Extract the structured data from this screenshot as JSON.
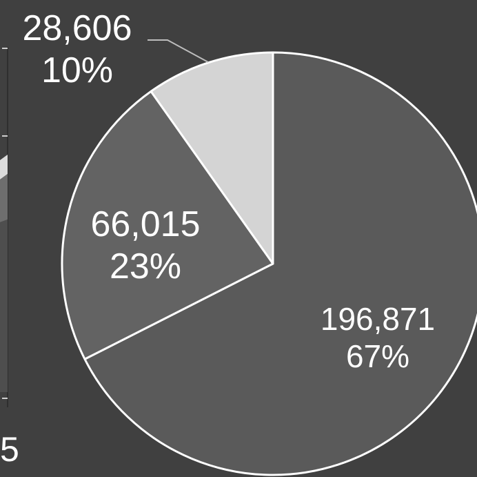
{
  "chart_data": {
    "type": "pie",
    "title": "",
    "start_angle_deg": 0,
    "direction": "clockwise",
    "slices": [
      {
        "value": 196871,
        "value_label": "196,871",
        "percent_label": "67%",
        "color": "#5a5a5a"
      },
      {
        "value": 66015,
        "value_label": "66,015",
        "percent_label": "23%",
        "color": "#636363"
      },
      {
        "value": 28606,
        "value_label": "28,606",
        "percent_label": "10%",
        "color": "#d4d4d4"
      }
    ]
  },
  "left_fragment": {
    "partial_label": "5"
  }
}
